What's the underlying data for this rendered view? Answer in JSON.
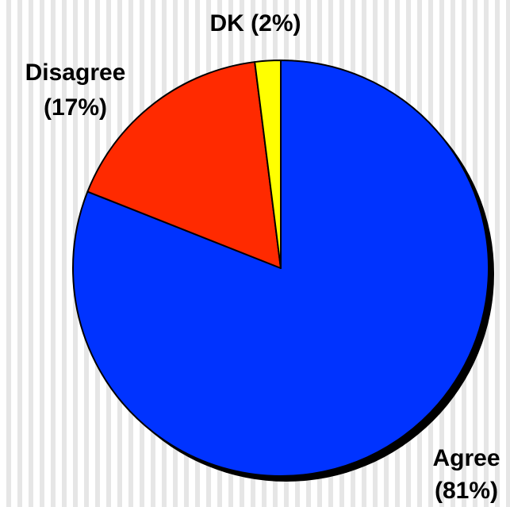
{
  "chart_data": {
    "type": "pie",
    "slices": [
      {
        "label": "Agree",
        "percent_label": "(81%)",
        "value": 81,
        "color": "#0033ff"
      },
      {
        "label": "Disagree",
        "percent_label": "(17%)",
        "value": 17,
        "color": "#ff2a00"
      },
      {
        "label": "DK (2%)",
        "percent_label": "",
        "value": 2,
        "color": "#ffff00"
      }
    ],
    "start_angle_degrees": 0,
    "direction": "clockwise",
    "legend": "none",
    "shadow_color": "#000000",
    "outline_color": "#000000"
  }
}
